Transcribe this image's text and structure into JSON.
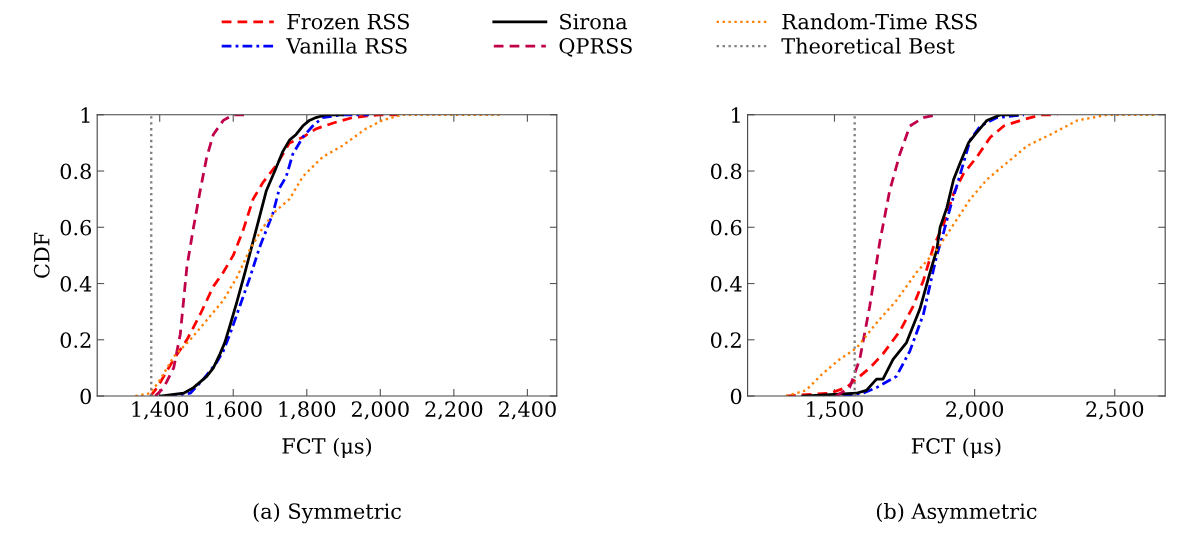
{
  "chart_data": [
    {
      "type": "line",
      "title": "(a) Symmetric",
      "xlabel": "FCT (μs)",
      "ylabel": "CDF",
      "legend": "top",
      "grid": false,
      "xlim": [
        1230,
        2480
      ],
      "ylim": [
        0,
        1
      ],
      "xticks": [
        {
          "value": 1400,
          "label": "1,400"
        },
        {
          "value": 1600,
          "label": "1,600"
        },
        {
          "value": 1800,
          "label": "1,800"
        },
        {
          "value": 2000,
          "label": "2,000"
        },
        {
          "value": 2200,
          "label": "2,200"
        },
        {
          "value": 2400,
          "label": "2,400"
        }
      ],
      "yticks": [
        0,
        0.2,
        0.4,
        0.6,
        0.8,
        1
      ],
      "series": [
        {
          "name": "Frozen RSS",
          "color": "#ff0000",
          "line_style": "dashed",
          "x": [
            1375,
            1393,
            1411,
            1438,
            1474,
            1510,
            1546,
            1573,
            1600,
            1627,
            1654,
            1681,
            1717,
            1753,
            1789,
            1825,
            1870,
            1924,
            1996,
            2050
          ],
          "values": [
            0,
            0.03,
            0.07,
            0.13,
            0.2,
            0.29,
            0.39,
            0.44,
            0.5,
            0.59,
            0.7,
            0.76,
            0.82,
            0.9,
            0.92,
            0.95,
            0.97,
            0.99,
            1.0,
            1
          ]
        },
        {
          "name": "Vanilla RSS",
          "color": "#0000ff",
          "line_style": "dashdot",
          "x": [
            1420,
            1483,
            1519,
            1555,
            1573,
            1591,
            1618,
            1645,
            1672,
            1690,
            1708,
            1726,
            1744,
            1762,
            1789,
            1816,
            1843,
            1897,
            1969
          ],
          "values": [
            0,
            0.01,
            0.06,
            0.12,
            0.16,
            0.22,
            0.32,
            0.42,
            0.53,
            0.59,
            0.65,
            0.74,
            0.78,
            0.86,
            0.92,
            0.96,
            0.99,
            1.0,
            1
          ]
        },
        {
          "name": "Sirona",
          "color": "#000000",
          "line_style": "solid",
          "x": [
            1402,
            1465,
            1492,
            1528,
            1546,
            1564,
            1577,
            1591,
            1609,
            1632,
            1654,
            1672,
            1690,
            1713,
            1735,
            1753,
            1771,
            1789,
            1807,
            1825,
            1852,
            1897
          ],
          "values": [
            0,
            0.01,
            0.03,
            0.07,
            0.1,
            0.15,
            0.19,
            0.25,
            0.33,
            0.44,
            0.55,
            0.64,
            0.73,
            0.8,
            0.87,
            0.91,
            0.93,
            0.96,
            0.98,
            0.99,
            1.0,
            1
          ]
        },
        {
          "name": "QPRSS",
          "color": "#c0004a",
          "line_style": "dashed",
          "x": [
            1388,
            1411,
            1438,
            1456,
            1474,
            1492,
            1510,
            1528,
            1546,
            1573,
            1600,
            1640
          ],
          "values": [
            0,
            0.03,
            0.1,
            0.22,
            0.46,
            0.6,
            0.73,
            0.85,
            0.93,
            0.98,
            1.0,
            1
          ]
        },
        {
          "name": "Random-Time RSS",
          "color": "#ff8000",
          "line_style": "dotted",
          "x": [
            1334,
            1375,
            1402,
            1438,
            1483,
            1528,
            1573,
            1609,
            1645,
            1681,
            1717,
            1753,
            1789,
            1843,
            1897,
            1960,
            2005,
            2059,
            2330
          ],
          "values": [
            0,
            0.01,
            0.06,
            0.14,
            0.2,
            0.27,
            0.34,
            0.42,
            0.52,
            0.6,
            0.66,
            0.7,
            0.78,
            0.85,
            0.89,
            0.95,
            0.98,
            1.0,
            1
          ]
        },
        {
          "name": "Theoretical Best",
          "color": "#808080",
          "line_style": "dotted",
          "x": [
            1377,
            1377
          ],
          "values": [
            0,
            1
          ]
        }
      ]
    },
    {
      "type": "line",
      "title": "(b) Asymmetric",
      "xlabel": "FCT (μs)",
      "grid": false,
      "xlim": [
        1190,
        2680
      ],
      "ylim": [
        0,
        1
      ],
      "xticks": [
        {
          "value": 1500,
          "label": "1,500"
        },
        {
          "value": 2000,
          "label": "2,000"
        },
        {
          "value": 2500,
          "label": "2,500"
        }
      ],
      "yticks": [
        0,
        0.2,
        0.4,
        0.6,
        0.8,
        1
      ],
      "series": [
        {
          "color": "#ff0000",
          "line_style": "dashed",
          "x": [
            1327,
            1482,
            1542,
            1590,
            1626,
            1673,
            1733,
            1781,
            1817,
            1853,
            1889,
            1925,
            1960,
            2008,
            2056,
            2104,
            2164,
            2236,
            2295
          ],
          "values": [
            0,
            0.01,
            0.03,
            0.07,
            0.1,
            0.15,
            0.23,
            0.32,
            0.41,
            0.53,
            0.61,
            0.72,
            0.79,
            0.85,
            0.92,
            0.96,
            0.98,
            1.0,
            1
          ]
        },
        {
          "color": "#0000ff",
          "line_style": "dashdot",
          "x": [
            1530,
            1602,
            1650,
            1721,
            1769,
            1817,
            1865,
            1889,
            1913,
            1949,
            1984,
            2020,
            2080,
            2176
          ],
          "values": [
            0,
            0.01,
            0.03,
            0.07,
            0.16,
            0.29,
            0.5,
            0.58,
            0.67,
            0.79,
            0.91,
            0.96,
            0.99,
            1
          ]
        },
        {
          "color": "#000000",
          "line_style": "solid",
          "x": [
            1386,
            1578,
            1614,
            1650,
            1673,
            1709,
            1757,
            1805,
            1841,
            1865,
            1877,
            1901,
            1925,
            1949,
            1978,
            2002,
            2044,
            2092,
            2152
          ],
          "values": [
            0,
            0.01,
            0.02,
            0.06,
            0.06,
            0.13,
            0.19,
            0.31,
            0.44,
            0.52,
            0.6,
            0.67,
            0.77,
            0.83,
            0.9,
            0.93,
            0.98,
            1.0,
            1
          ]
        },
        {
          "color": "#c0004a",
          "line_style": "dashed",
          "x": [
            1506,
            1554,
            1590,
            1626,
            1662,
            1697,
            1733,
            1769,
            1817,
            1865
          ],
          "values": [
            0,
            0.03,
            0.13,
            0.32,
            0.55,
            0.73,
            0.86,
            0.96,
            0.99,
            1
          ]
        },
        {
          "color": "#ff8000",
          "line_style": "dotted",
          "x": [
            1327,
            1398,
            1458,
            1518,
            1578,
            1650,
            1721,
            1793,
            1865,
            1925,
            1984,
            2044,
            2116,
            2188,
            2271,
            2367,
            2475,
            2654
          ],
          "values": [
            0,
            0.02,
            0.08,
            0.13,
            0.17,
            0.26,
            0.34,
            0.44,
            0.52,
            0.61,
            0.7,
            0.77,
            0.83,
            0.89,
            0.93,
            0.98,
            1.0,
            1
          ]
        },
        {
          "color": "#808080",
          "line_style": "dotted",
          "x": [
            1572,
            1572
          ],
          "values": [
            0,
            1
          ]
        }
      ]
    }
  ]
}
